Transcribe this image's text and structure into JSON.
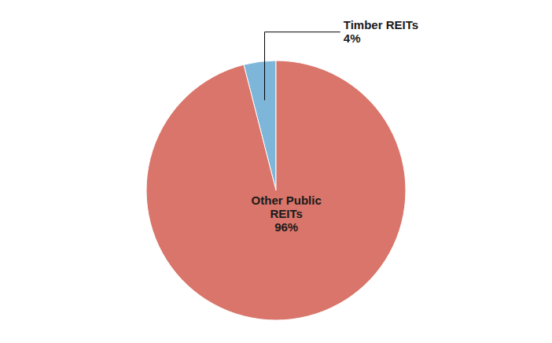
{
  "chart_data": {
    "type": "pie",
    "values": [
      4,
      96
    ],
    "value_labels": [
      "Timber REITs\n4%",
      "Other Public\nREITs\n96%"
    ],
    "colors": [
      "#7eb6d9",
      "#d9756a"
    ],
    "data_labels": true
  }
}
